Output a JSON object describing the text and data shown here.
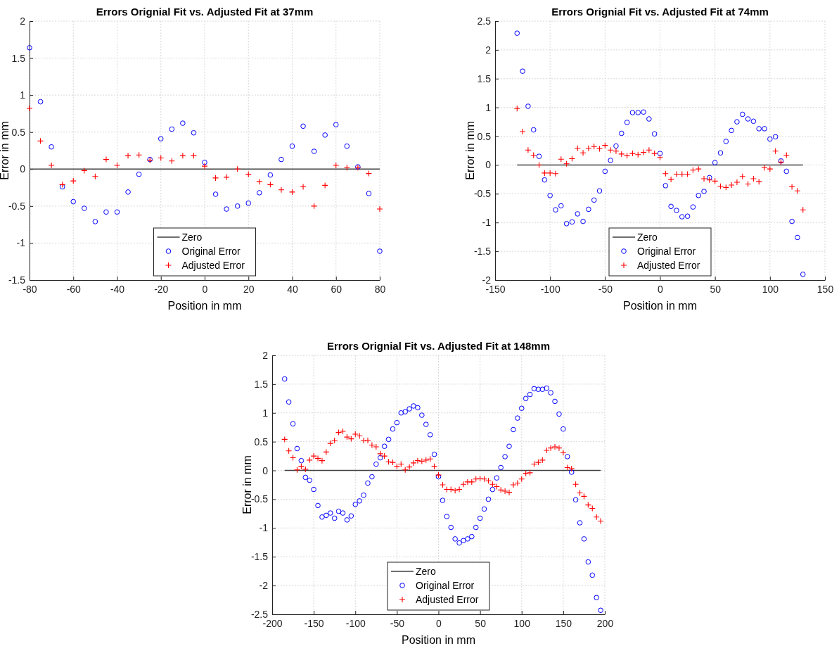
{
  "chart_data": [
    {
      "type": "scatter",
      "title": "Errors Orignial Fit vs. Adjusted Fit at 37mm",
      "xlabel": "Position in mm",
      "ylabel": "Error in mm",
      "x": [
        -80,
        -75,
        -70,
        -65,
        -60,
        -55,
        -50,
        -45,
        -40,
        -35,
        -30,
        -25,
        -20,
        -15,
        -10,
        -5,
        0,
        5,
        10,
        15,
        20,
        25,
        30,
        35,
        40,
        45,
        50,
        55,
        60,
        65,
        70,
        75,
        80
      ],
      "series": [
        {
          "name": "Zero",
          "type": "line",
          "color": "#404040",
          "marker": "none",
          "line_style": "solid",
          "x": [
            -80,
            80
          ],
          "values": [
            0,
            0
          ]
        },
        {
          "name": "Original Error",
          "color": "#0000ff",
          "marker": "circle",
          "values": [
            1.64,
            0.91,
            0.3,
            -0.24,
            -0.44,
            -0.53,
            -0.71,
            -0.58,
            -0.58,
            -0.31,
            -0.07,
            0.13,
            0.41,
            0.54,
            0.62,
            0.49,
            0.09,
            -0.34,
            -0.54,
            -0.5,
            -0.46,
            -0.32,
            -0.08,
            0.13,
            0.31,
            0.58,
            0.24,
            0.46,
            0.6,
            0.31,
            0.03,
            -0.33,
            -1.11
          ]
        },
        {
          "name": "Adjusted Error",
          "color": "#ff0000",
          "marker": "cross",
          "values": [
            0.82,
            0.38,
            0.05,
            -0.21,
            -0.16,
            -0.02,
            -0.1,
            0.13,
            0.05,
            0.18,
            0.19,
            0.12,
            0.15,
            0.11,
            0.18,
            0.18,
            0.04,
            -0.12,
            -0.11,
            0.0,
            -0.07,
            -0.17,
            -0.21,
            -0.28,
            -0.31,
            -0.24,
            -0.5,
            -0.22,
            0.05,
            0.02,
            0.02,
            -0.06,
            -0.54
          ]
        }
      ],
      "xlim": [
        -80,
        80
      ],
      "xticks": [
        -80,
        -60,
        -40,
        -20,
        0,
        20,
        40,
        60,
        80
      ],
      "ylim": [
        -1.5,
        2
      ],
      "yticks": [
        -1.5,
        -1,
        -0.5,
        0,
        0.5,
        1,
        1.5,
        2
      ],
      "grid": true,
      "legend": "bottom"
    },
    {
      "type": "scatter",
      "title": "Errors Orignial Fit vs. Adjusted Fit at 74mm",
      "xlabel": "Position in mm",
      "ylabel": "Error in mm",
      "x": [
        -130,
        -125,
        -120,
        -115,
        -110,
        -105,
        -100,
        -95,
        -90,
        -85,
        -80,
        -75,
        -70,
        -65,
        -60,
        -55,
        -50,
        -45,
        -40,
        -35,
        -30,
        -25,
        -20,
        -15,
        -10,
        -5,
        0,
        5,
        10,
        15,
        20,
        25,
        30,
        35,
        40,
        45,
        50,
        55,
        60,
        65,
        70,
        75,
        80,
        85,
        90,
        95,
        100,
        105,
        110,
        115,
        120,
        125,
        130
      ],
      "series": [
        {
          "name": "Zero",
          "type": "line",
          "color": "#404040",
          "marker": "none",
          "line_style": "solid",
          "x": [
            -130,
            130
          ],
          "values": [
            0,
            0
          ]
        },
        {
          "name": "Original Error",
          "color": "#0000ff",
          "marker": "circle",
          "values": [
            2.29,
            1.63,
            1.02,
            0.61,
            0.15,
            -0.26,
            -0.53,
            -0.78,
            -0.71,
            -1.02,
            -0.99,
            -0.85,
            -0.98,
            -0.77,
            -0.61,
            -0.45,
            -0.11,
            0.08,
            0.33,
            0.55,
            0.74,
            0.91,
            0.91,
            0.92,
            0.8,
            0.54,
            0.2,
            -0.36,
            -0.72,
            -0.79,
            -0.9,
            -0.89,
            -0.73,
            -0.53,
            -0.46,
            -0.22,
            0.04,
            0.21,
            0.41,
            0.6,
            0.75,
            0.88,
            0.8,
            0.76,
            0.63,
            0.63,
            0.45,
            0.49,
            0.07,
            -0.11,
            -0.98,
            -1.26,
            -1.9
          ]
        },
        {
          "name": "Adjusted Error",
          "color": "#ff0000",
          "marker": "cross",
          "values": [
            0.98,
            0.58,
            0.26,
            0.17,
            0.0,
            -0.14,
            -0.14,
            -0.15,
            0.1,
            0.02,
            0.11,
            0.29,
            0.21,
            0.29,
            0.32,
            0.28,
            0.34,
            0.26,
            0.24,
            0.19,
            0.16,
            0.2,
            0.18,
            0.22,
            0.26,
            0.2,
            0.13,
            -0.15,
            -0.25,
            -0.16,
            -0.16,
            -0.16,
            -0.09,
            -0.07,
            -0.24,
            -0.26,
            -0.28,
            -0.37,
            -0.39,
            -0.35,
            -0.3,
            -0.2,
            -0.33,
            -0.24,
            -0.29,
            -0.05,
            -0.07,
            0.24,
            0.05,
            0.17,
            -0.38,
            -0.45,
            -0.78
          ]
        }
      ],
      "xlim": [
        -150,
        150
      ],
      "xticks": [
        -150,
        -100,
        -50,
        0,
        50,
        100,
        150
      ],
      "ylim": [
        -2,
        2.5
      ],
      "yticks": [
        -2,
        -1.5,
        -1,
        -0.5,
        0,
        0.5,
        1,
        1.5,
        2,
        2.5
      ],
      "grid": true,
      "legend": "bottom"
    },
    {
      "type": "scatter",
      "title": "Errors Orignial Fit vs. Adjusted Fit at 148mm",
      "xlabel": "Position in mm",
      "ylabel": "Error in mm",
      "x": [
        -185,
        -180,
        -175,
        -170,
        -165,
        -160,
        -155,
        -150,
        -145,
        -140,
        -135,
        -130,
        -125,
        -120,
        -115,
        -110,
        -105,
        -100,
        -95,
        -90,
        -85,
        -80,
        -75,
        -70,
        -65,
        -60,
        -55,
        -50,
        -45,
        -40,
        -35,
        -30,
        -25,
        -20,
        -15,
        -10,
        -5,
        0,
        5,
        10,
        15,
        20,
        25,
        30,
        35,
        40,
        45,
        50,
        55,
        60,
        65,
        70,
        75,
        80,
        85,
        90,
        95,
        100,
        105,
        110,
        115,
        120,
        125,
        130,
        135,
        140,
        145,
        150,
        155,
        160,
        165,
        170,
        175,
        180,
        185,
        190,
        195
      ],
      "series": [
        {
          "name": "Zero",
          "type": "line",
          "color": "#404040",
          "marker": "none",
          "line_style": "solid",
          "x": [
            -185,
            195
          ],
          "values": [
            0,
            0
          ]
        },
        {
          "name": "Original Error",
          "color": "#0000ff",
          "marker": "circle",
          "values": [
            1.59,
            1.19,
            0.81,
            0.38,
            0.17,
            -0.12,
            -0.17,
            -0.33,
            -0.61,
            -0.81,
            -0.78,
            -0.74,
            -0.83,
            -0.71,
            -0.74,
            -0.86,
            -0.79,
            -0.59,
            -0.53,
            -0.43,
            -0.22,
            -0.11,
            0.11,
            0.22,
            0.42,
            0.54,
            0.72,
            0.83,
            1.0,
            1.02,
            1.07,
            1.12,
            1.09,
            0.96,
            0.8,
            0.62,
            0.28,
            -0.11,
            -0.52,
            -0.8,
            -0.99,
            -1.19,
            -1.26,
            -1.22,
            -1.19,
            -1.15,
            -0.99,
            -0.83,
            -0.67,
            -0.5,
            -0.33,
            -0.13,
            0.05,
            0.24,
            0.42,
            0.71,
            0.91,
            1.08,
            1.25,
            1.32,
            1.42,
            1.41,
            1.41,
            1.43,
            1.35,
            1.2,
            0.98,
            0.72,
            0.24,
            -0.03,
            -0.51,
            -0.91,
            -1.19,
            -1.59,
            -1.82,
            -2.21,
            -2.43
          ]
        },
        {
          "name": "Adjusted Error",
          "color": "#ff0000",
          "marker": "cross",
          "values": [
            0.54,
            0.34,
            0.22,
            0.01,
            0.07,
            0.02,
            0.18,
            0.25,
            0.21,
            0.17,
            0.32,
            0.47,
            0.52,
            0.66,
            0.68,
            0.58,
            0.55,
            0.63,
            0.6,
            0.52,
            0.52,
            0.44,
            0.41,
            0.29,
            0.25,
            0.15,
            0.14,
            0.07,
            0.11,
            0.01,
            0.06,
            0.13,
            0.17,
            0.16,
            0.18,
            0.2,
            0.07,
            -0.08,
            -0.25,
            -0.33,
            -0.33,
            -0.35,
            -0.33,
            -0.24,
            -0.2,
            -0.2,
            -0.15,
            -0.14,
            -0.15,
            -0.18,
            -0.24,
            -0.28,
            -0.34,
            -0.36,
            -0.38,
            -0.25,
            -0.22,
            -0.15,
            -0.05,
            -0.04,
            0.11,
            0.14,
            0.18,
            0.35,
            0.39,
            0.41,
            0.39,
            0.31,
            0.05,
            0.03,
            -0.24,
            -0.39,
            -0.45,
            -0.6,
            -0.66,
            -0.81,
            -0.88
          ]
        }
      ],
      "xlim": [
        -200,
        200
      ],
      "xticks": [
        -200,
        -150,
        -100,
        -50,
        0,
        50,
        100,
        150,
        200
      ],
      "ylim": [
        -2.5,
        2
      ],
      "yticks": [
        -2.5,
        -2,
        -1.5,
        -1,
        -0.5,
        0,
        0.5,
        1,
        1.5,
        2
      ],
      "grid": true,
      "legend": "bottom"
    }
  ]
}
